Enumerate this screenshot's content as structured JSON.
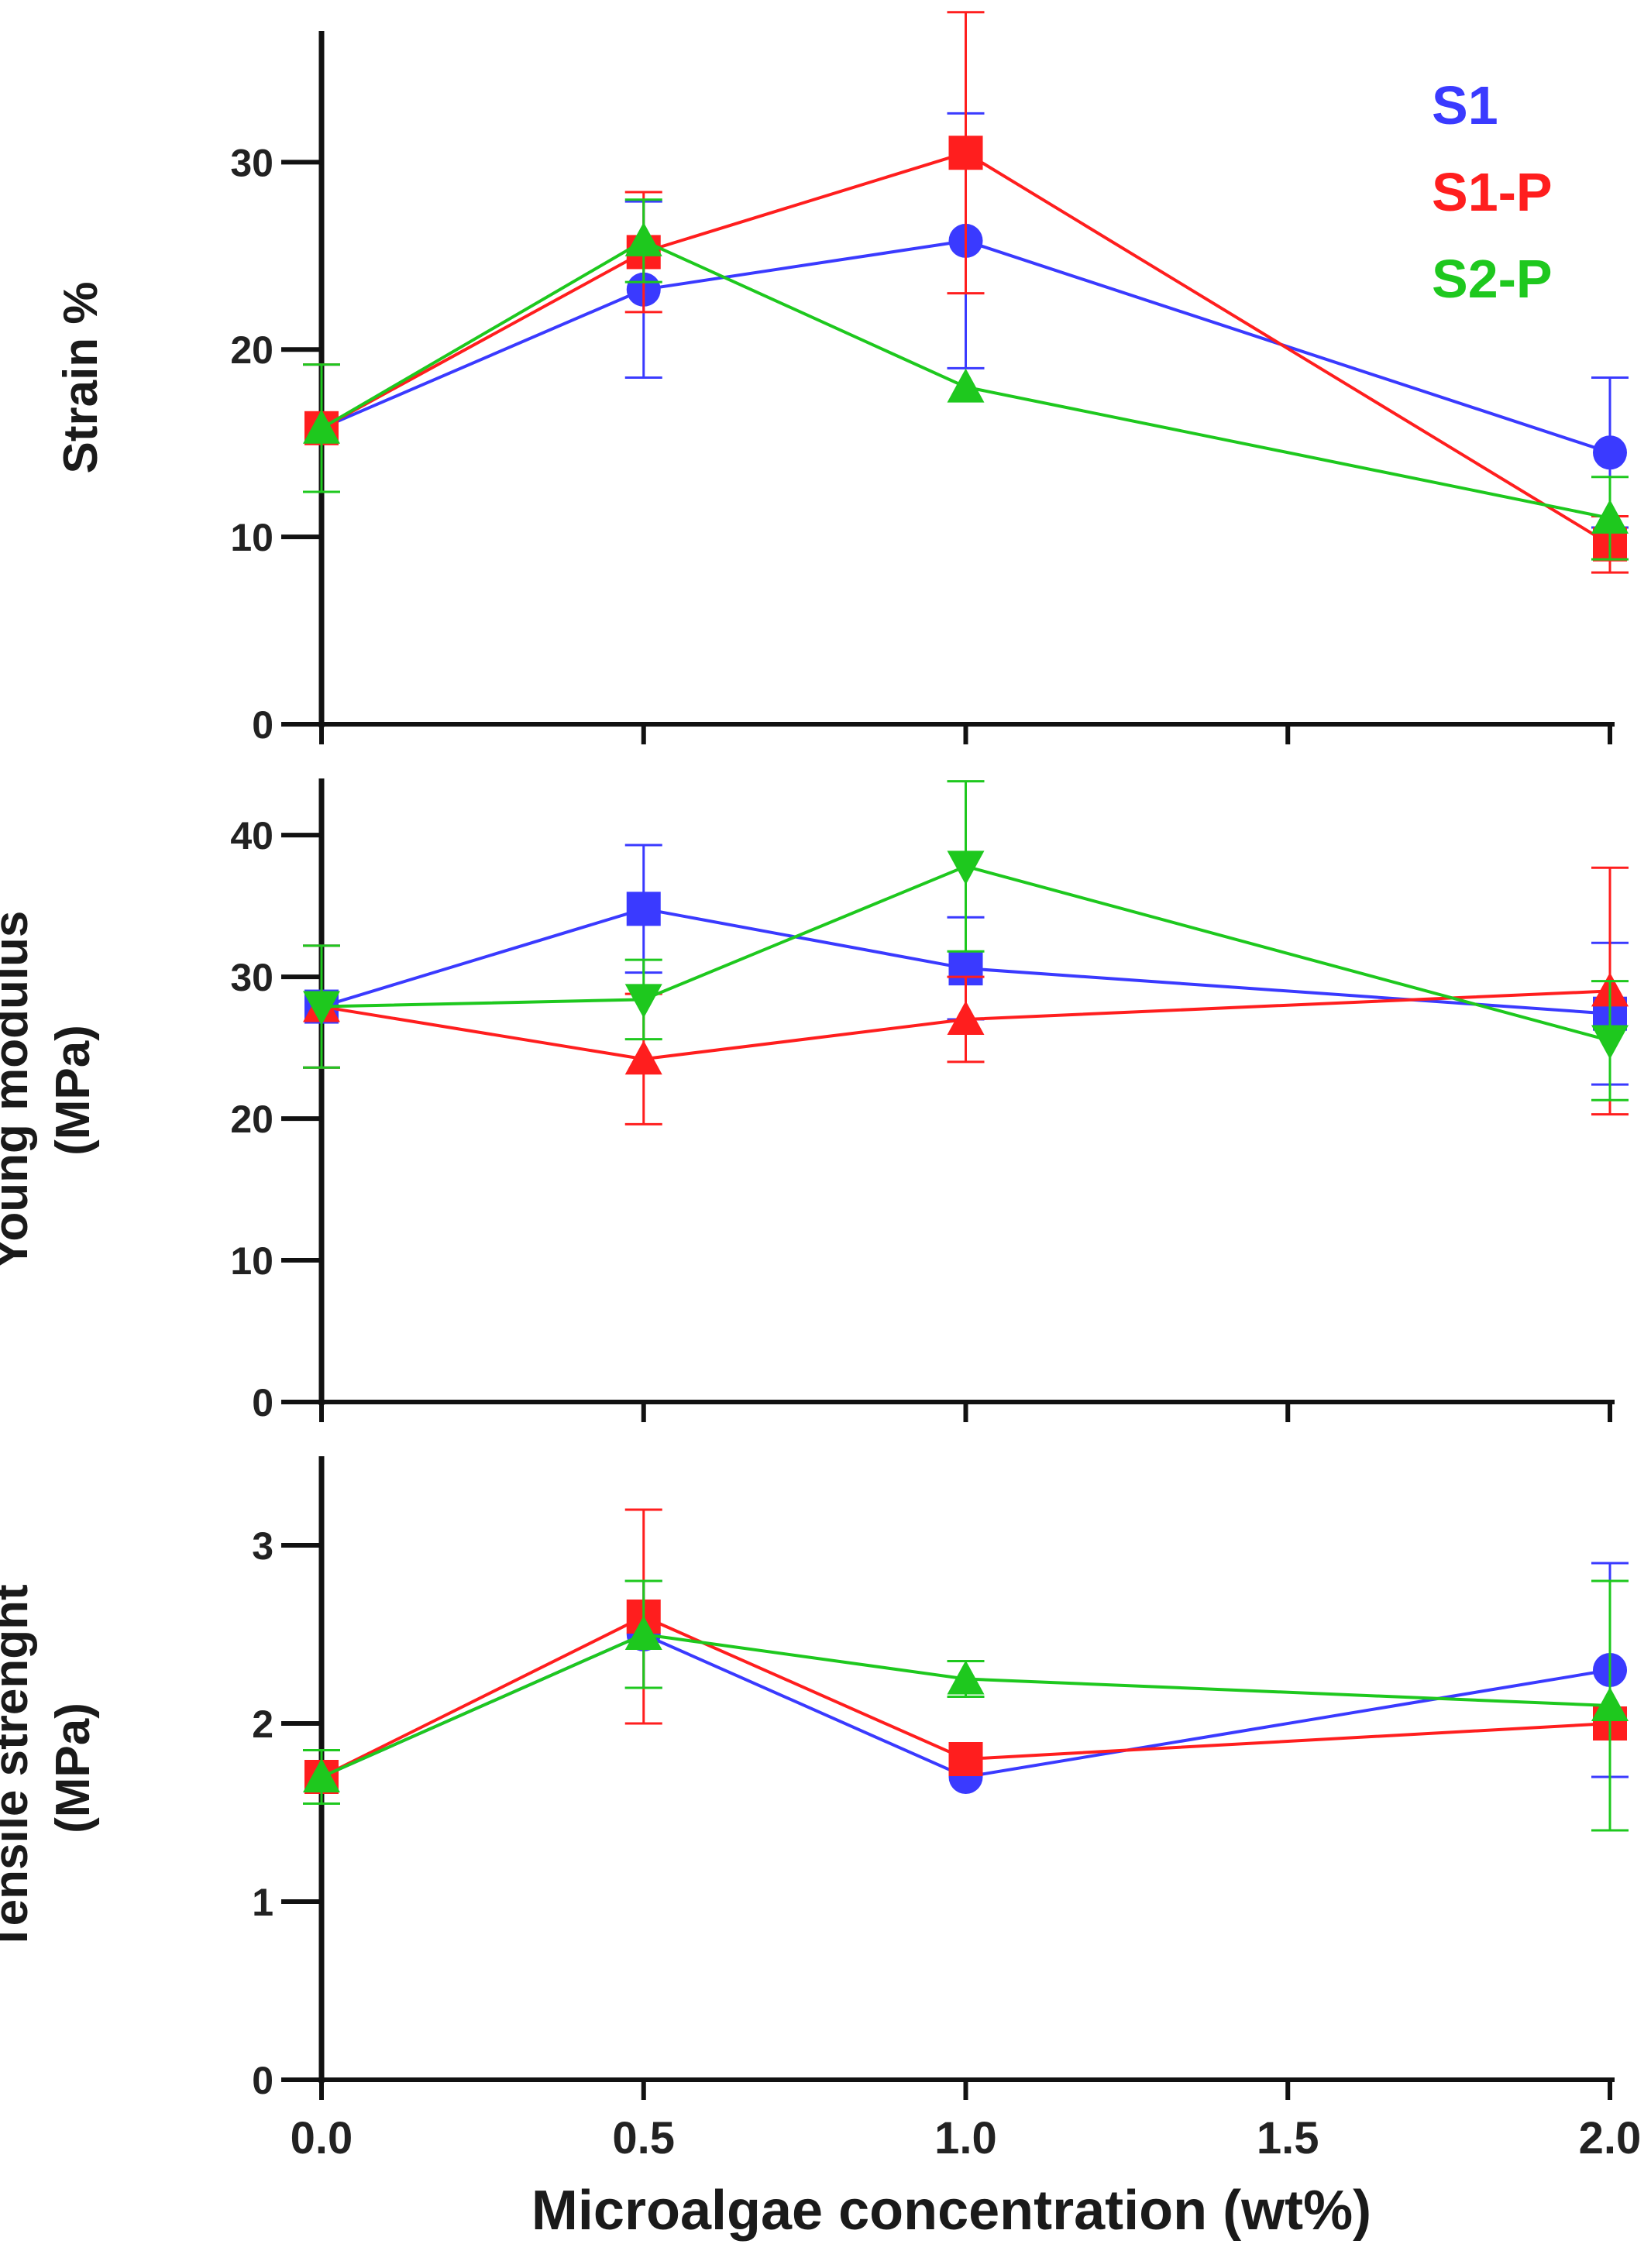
{
  "legend": [
    {
      "name": "S1",
      "color": "#3a3aff"
    },
    {
      "name": "S1-P",
      "color": "#ff1e1e"
    },
    {
      "name": "S2-P",
      "color": "#1ec81e"
    }
  ],
  "x_axis": {
    "title": "Microalgae concentration (wt%)",
    "range": [
      0,
      2
    ],
    "ticks": [
      0,
      0.5,
      1,
      1.5,
      2
    ],
    "tick_labels": [
      "0.0",
      "0.5",
      "1.0",
      "1.5",
      "2.0"
    ]
  },
  "chart_data": [
    {
      "type": "line",
      "ylabel": [
        "Strain %"
      ],
      "ylim": [
        0,
        37
      ],
      "yticks": [
        0,
        10,
        20,
        30
      ],
      "x": [
        0,
        0.5,
        1,
        2
      ],
      "series": [
        {
          "name": "S1",
          "color": "#3a3aff",
          "marker": "circle",
          "values": [
            15.8,
            23.2,
            25.8,
            14.5
          ],
          "errors": [
            3.4,
            4.7,
            6.8,
            4.0
          ]
        },
        {
          "name": "S1-P",
          "color": "#ff1e1e",
          "marker": "square",
          "values": [
            15.8,
            25.2,
            30.5,
            9.6
          ],
          "errors": [
            3.4,
            3.2,
            7.5,
            1.5
          ]
        },
        {
          "name": "S2-P",
          "color": "#1ec81e",
          "marker": "triangle-up",
          "values": [
            15.8,
            25.8,
            18.0,
            11.0
          ],
          "errors": [
            3.4,
            2.2,
            0,
            2.2
          ]
        }
      ]
    },
    {
      "type": "line",
      "ylabel": [
        "Young modulus",
        "(MPa)"
      ],
      "ylim": [
        0,
        44
      ],
      "yticks": [
        0,
        10,
        20,
        30,
        40
      ],
      "x": [
        0,
        0.5,
        1,
        2
      ],
      "series": [
        {
          "name": "S1",
          "color": "#3a3aff",
          "marker": "square",
          "values": [
            27.9,
            34.8,
            30.6,
            27.4
          ],
          "errors": [
            4.3,
            4.5,
            3.6,
            5.0
          ]
        },
        {
          "name": "S1-P",
          "color": "#ff1e1e",
          "marker": "triangle-up",
          "values": [
            27.9,
            24.2,
            27.0,
            29.0
          ],
          "errors": [
            4.3,
            4.6,
            3.0,
            8.7
          ]
        },
        {
          "name": "S2-P",
          "color": "#1ec81e",
          "marker": "triangle-down",
          "values": [
            27.9,
            28.4,
            37.8,
            25.5
          ],
          "errors": [
            4.3,
            2.8,
            6.0,
            4.2
          ]
        }
      ]
    },
    {
      "type": "line",
      "ylabel": [
        "Tensile strenght",
        "(MPa)"
      ],
      "ylim": [
        0,
        3.5
      ],
      "yticks": [
        0,
        1,
        2,
        3
      ],
      "x": [
        0,
        0.5,
        1,
        2
      ],
      "series": [
        {
          "name": "S1",
          "color": "#3a3aff",
          "marker": "circle",
          "values": [
            1.7,
            2.5,
            1.7,
            2.3
          ],
          "errors": [
            0.15,
            0.3,
            0,
            0.6
          ]
        },
        {
          "name": "S1-P",
          "color": "#ff1e1e",
          "marker": "square",
          "values": [
            1.7,
            2.6,
            1.8,
            2.0
          ],
          "errors": [
            0.15,
            0.6,
            0,
            0
          ]
        },
        {
          "name": "S2-P",
          "color": "#1ec81e",
          "marker": "triangle-up",
          "values": [
            1.7,
            2.5,
            2.25,
            2.1
          ],
          "errors": [
            0.15,
            0.3,
            0.1,
            0.7
          ]
        }
      ]
    }
  ]
}
